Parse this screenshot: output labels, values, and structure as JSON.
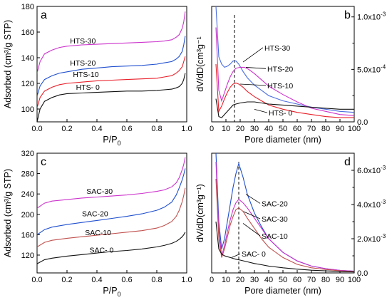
{
  "chart_data": [
    {
      "panel": "a",
      "type": "line",
      "xlabel_main": "P/P",
      "xlabel_sub": "0",
      "ylabel": "Adsorbed (cm³/g STP)",
      "xlim": [
        0,
        1.0
      ],
      "ylim": [
        90,
        180
      ],
      "xticks": [
        "0.0",
        "0.2",
        "0.4",
        "0.6",
        "0.8",
        "1.0"
      ],
      "xtick_values": [
        0,
        0.2,
        0.4,
        0.6,
        0.8,
        1.0
      ],
      "yticks": [
        "100",
        "120",
        "140",
        "160",
        "180"
      ],
      "ytick_values": [
        100,
        120,
        140,
        160,
        180
      ],
      "series": [
        {
          "name": "HTS-30",
          "color": "#cc33cc",
          "label_at": [
            0.22,
            151
          ],
          "x": [
            0.0,
            0.02,
            0.05,
            0.1,
            0.15,
            0.2,
            0.3,
            0.4,
            0.5,
            0.6,
            0.7,
            0.8,
            0.85,
            0.9,
            0.93,
            0.95,
            0.97,
            0.98,
            0.99
          ],
          "y": [
            128,
            137,
            143,
            146,
            148,
            149,
            150,
            150.5,
            151,
            151.5,
            152,
            152.5,
            153,
            154,
            156,
            158,
            163,
            168,
            176
          ]
        },
        {
          "name": "HTS-20",
          "color": "#1f4fcf",
          "label_at": [
            0.22,
            134
          ],
          "x": [
            0.0,
            0.02,
            0.05,
            0.1,
            0.15,
            0.2,
            0.3,
            0.4,
            0.5,
            0.6,
            0.7,
            0.8,
            0.85,
            0.9,
            0.93,
            0.95,
            0.97,
            0.98,
            0.99
          ],
          "y": [
            110,
            118,
            123,
            126,
            128,
            129,
            131,
            132,
            133,
            133.5,
            134,
            135,
            136,
            137,
            139,
            141,
            145,
            150,
            157
          ]
        },
        {
          "name": "HTS-10",
          "color": "#e8202a",
          "label_at": [
            0.24,
            125
          ],
          "x": [
            0.0,
            0.02,
            0.05,
            0.1,
            0.15,
            0.2,
            0.3,
            0.4,
            0.5,
            0.6,
            0.7,
            0.8,
            0.85,
            0.9,
            0.93,
            0.95,
            0.97,
            0.98,
            0.99
          ],
          "y": [
            101,
            109,
            114,
            117,
            119,
            120,
            121,
            122,
            122.5,
            123,
            123.5,
            124,
            125,
            126,
            128,
            130,
            133,
            137,
            141
          ]
        },
        {
          "name": "HTS- 0",
          "color": "#111111",
          "label_at": [
            0.26,
            115
          ],
          "x": [
            0.0,
            0.02,
            0.05,
            0.1,
            0.15,
            0.2,
            0.3,
            0.4,
            0.5,
            0.6,
            0.7,
            0.8,
            0.85,
            0.9,
            0.93,
            0.95,
            0.97,
            0.98,
            0.99
          ],
          "y": [
            90,
            100,
            106,
            109,
            111,
            112,
            112.5,
            113,
            113.5,
            114,
            114,
            114.5,
            115,
            115.5,
            116.5,
            117.5,
            120,
            123,
            128
          ]
        }
      ]
    },
    {
      "panel": "b",
      "type": "line",
      "xlabel": "Pore diameter (nm)",
      "ylabel": "dV/dD(cm³g⁻¹",
      "xlim": [
        0,
        100
      ],
      "ylim": [
        0,
        1.1
      ],
      "xticks": [
        "0",
        "10",
        "20",
        "30",
        "40",
        "50",
        "60",
        "70",
        "80",
        "90",
        "100"
      ],
      "xtick_values": [
        0,
        10,
        20,
        30,
        40,
        50,
        60,
        70,
        80,
        90,
        100
      ],
      "yticks": [
        "0.0",
        "5.0x10",
        "1.0x10"
      ],
      "ytick_exps": [
        "",
        "-4",
        "-3"
      ],
      "ytick_values": [
        0,
        0.5,
        1.0
      ],
      "ytick_minor": [
        0.25,
        0.75
      ],
      "dashed_x": 16,
      "series": [
        {
          "name": "HTS-30",
          "color": "#4a6de0",
          "label_at": [
            36,
            0.68
          ],
          "arrow_to": [
            22,
            0.57
          ],
          "x": [
            3,
            5,
            7,
            9,
            11,
            13,
            15,
            17,
            19,
            22,
            25,
            30,
            35,
            40,
            50,
            60,
            70,
            80,
            90,
            100
          ],
          "y": [
            1.1,
            0.62,
            0.55,
            0.52,
            0.53,
            0.55,
            0.58,
            0.58,
            0.55,
            0.48,
            0.42,
            0.35,
            0.3,
            0.25,
            0.2,
            0.17,
            0.14,
            0.12,
            0.1,
            0.09
          ]
        },
        {
          "name": "HTS-20",
          "color": "#cc33cc",
          "label_at": [
            38,
            0.48
          ],
          "arrow_to": [
            24,
            0.52
          ],
          "x": [
            3,
            5,
            7,
            9,
            11,
            13,
            15,
            17,
            20,
            23,
            26,
            30,
            35,
            40,
            50,
            60,
            70,
            80,
            90,
            100
          ],
          "y": [
            0.9,
            0.3,
            0.2,
            0.28,
            0.36,
            0.43,
            0.48,
            0.51,
            0.52,
            0.52,
            0.5,
            0.46,
            0.4,
            0.34,
            0.26,
            0.19,
            0.13,
            0.1,
            0.07,
            0.06
          ]
        },
        {
          "name": "HTS-10",
          "color": "#e8202a",
          "label_at": [
            38,
            0.32
          ],
          "arrow_to": [
            20,
            0.36
          ],
          "x": [
            3,
            5,
            7,
            9,
            11,
            13,
            15,
            17,
            19,
            22,
            25,
            30,
            35,
            40,
            50,
            60,
            70,
            80,
            90,
            100
          ],
          "y": [
            0.55,
            0.1,
            0.15,
            0.22,
            0.28,
            0.33,
            0.36,
            0.37,
            0.36,
            0.33,
            0.29,
            0.24,
            0.2,
            0.16,
            0.12,
            0.09,
            0.07,
            0.05,
            0.04,
            0.04
          ]
        },
        {
          "name": "HTS- 0",
          "color": "#111111",
          "label_at": [
            39,
            0.06
          ],
          "arrow_to": [
            30,
            0.12
          ],
          "x": [
            3,
            5,
            7,
            9,
            11,
            13,
            15,
            17,
            20,
            25,
            30,
            35,
            40,
            50,
            60,
            70,
            80,
            90,
            100
          ],
          "y": [
            0.22,
            0.05,
            0.04,
            0.07,
            0.1,
            0.13,
            0.16,
            0.17,
            0.18,
            0.19,
            0.19,
            0.18,
            0.17,
            0.16,
            0.15,
            0.14,
            0.13,
            0.12,
            0.12
          ]
        }
      ]
    },
    {
      "panel": "c",
      "type": "line",
      "xlabel_main": "P/P",
      "xlabel_sub": "0",
      "ylabel": "Adsorbed (cm³/g STP)",
      "xlim": [
        0,
        1.0
      ],
      "ylim": [
        85,
        320
      ],
      "xticks": [
        "0.0",
        "0.2",
        "0.4",
        "0.6",
        "0.8",
        "1.0"
      ],
      "xtick_values": [
        0,
        0.2,
        0.4,
        0.6,
        0.8,
        1.0
      ],
      "yticks": [
        "120",
        "160",
        "200",
        "240",
        "280",
        "320"
      ],
      "ytick_values": [
        120,
        160,
        200,
        240,
        280,
        320
      ],
      "series": [
        {
          "name": "SAC-30",
          "color": "#cc33cc",
          "label_at": [
            0.33,
            240
          ],
          "x": [
            0.0,
            0.05,
            0.1,
            0.2,
            0.3,
            0.4,
            0.5,
            0.6,
            0.7,
            0.8,
            0.85,
            0.9,
            0.93,
            0.95,
            0.97,
            0.98,
            0.99
          ],
          "y": [
            212,
            222,
            226,
            229,
            232,
            234,
            236,
            238,
            241,
            245,
            248,
            254,
            262,
            272,
            288,
            298,
            312
          ]
        },
        {
          "name": "SAC-20",
          "color": "#1f4fcf",
          "label_at": [
            0.3,
            196
          ],
          "x": [
            0.0,
            0.05,
            0.1,
            0.2,
            0.3,
            0.4,
            0.5,
            0.6,
            0.7,
            0.8,
            0.85,
            0.9,
            0.93,
            0.95,
            0.97,
            0.98,
            0.99
          ],
          "y": [
            160,
            170,
            175,
            180,
            184,
            188,
            192,
            196,
            201,
            208,
            214,
            224,
            238,
            252,
            268,
            278,
            290
          ]
        },
        {
          "name": "SAC-10",
          "color": "#c0504d",
          "label_at": [
            0.32,
            159
          ],
          "x": [
            0.0,
            0.05,
            0.1,
            0.2,
            0.3,
            0.4,
            0.5,
            0.6,
            0.7,
            0.8,
            0.85,
            0.9,
            0.93,
            0.95,
            0.97,
            0.98,
            0.99
          ],
          "y": [
            136,
            145,
            149,
            153,
            156,
            159,
            162,
            165,
            168,
            173,
            178,
            186,
            196,
            208,
            225,
            237,
            252
          ]
        },
        {
          "name": "SAC- 0",
          "color": "#111111",
          "label_at": [
            0.35,
            125
          ],
          "x": [
            0.0,
            0.05,
            0.1,
            0.2,
            0.3,
            0.4,
            0.5,
            0.6,
            0.7,
            0.8,
            0.85,
            0.9,
            0.93,
            0.95,
            0.97,
            0.98,
            0.99
          ],
          "y": [
            103,
            111,
            114,
            118,
            121,
            124,
            127,
            129,
            132,
            136,
            139,
            143,
            147,
            151,
            156,
            160,
            165
          ]
        }
      ]
    },
    {
      "panel": "d",
      "type": "line",
      "xlabel": "Pore diameter (nm)",
      "ylabel": "dV/dD(cm³g⁻¹)",
      "xlim": [
        0,
        100
      ],
      "ylim": [
        0,
        7.0
      ],
      "xticks": [
        "0",
        "10",
        "20",
        "30",
        "40",
        "50",
        "60",
        "70",
        "80",
        "90",
        "100"
      ],
      "xtick_values": [
        0,
        10,
        20,
        30,
        40,
        50,
        60,
        70,
        80,
        90,
        100
      ],
      "yticks": [
        "0.0",
        "2.0x10",
        "4.0x10",
        "6.0x10"
      ],
      "ytick_exps": [
        "",
        "-3",
        "-3",
        "-3"
      ],
      "ytick_values": [
        0,
        2.0,
        4.0,
        6.0
      ],
      "ytick_minor": [
        1.0,
        3.0,
        5.0
      ],
      "dashed_x": 19,
      "series": [
        {
          "name": "SAC-20",
          "color": "#1f4fcf",
          "label_at": [
            34,
            3.9
          ],
          "arrow_to": [
            24,
            4.6
          ],
          "x": [
            3,
            5,
            7,
            9,
            11,
            13,
            15,
            17,
            19,
            22,
            25,
            30,
            35,
            40,
            50,
            60,
            70,
            80,
            90,
            100
          ],
          "y": [
            7.0,
            3.0,
            1.4,
            2.0,
            3.0,
            4.0,
            5.0,
            5.8,
            6.4,
            5.6,
            4.6,
            3.5,
            2.7,
            2.0,
            1.2,
            0.7,
            0.4,
            0.25,
            0.15,
            0.1
          ]
        },
        {
          "name": "SAC-30",
          "color": "#cc33cc",
          "label_at": [
            34,
            3.0
          ],
          "arrow_to": [
            22,
            3.6
          ],
          "x": [
            3,
            5,
            7,
            9,
            11,
            13,
            15,
            17,
            19,
            22,
            25,
            30,
            35,
            40,
            50,
            60,
            70,
            80,
            90,
            100
          ],
          "y": [
            6.5,
            2.5,
            1.0,
            1.6,
            2.4,
            3.1,
            3.7,
            4.1,
            4.3,
            4.1,
            3.8,
            3.2,
            2.6,
            2.0,
            1.2,
            0.7,
            0.4,
            0.25,
            0.15,
            0.1
          ]
        },
        {
          "name": "SAC-10",
          "color": "#c0504d",
          "label_at": [
            34,
            2.0
          ],
          "arrow_to": [
            22,
            2.9
          ],
          "x": [
            3,
            5,
            7,
            9,
            11,
            13,
            15,
            17,
            19,
            22,
            25,
            30,
            35,
            40,
            50,
            60,
            70,
            80,
            90,
            100
          ],
          "y": [
            5.5,
            2.0,
            0.9,
            1.4,
            2.1,
            2.8,
            3.3,
            3.7,
            3.8,
            3.6,
            3.2,
            2.6,
            2.0,
            1.5,
            0.9,
            0.5,
            0.3,
            0.2,
            0.12,
            0.08
          ]
        },
        {
          "name": "SAC- 0",
          "color": "#111111",
          "label_at": [
            20,
            0.95
          ],
          "arrow_to": [
            14,
            0.9
          ],
          "x": [
            3,
            5,
            7,
            9,
            11,
            13,
            15,
            17,
            20,
            25,
            30,
            35,
            40,
            50,
            60,
            70,
            80,
            90,
            100
          ],
          "y": [
            3.0,
            1.4,
            1.1,
            1.0,
            0.95,
            0.9,
            0.85,
            0.8,
            0.75,
            0.65,
            0.55,
            0.48,
            0.4,
            0.3,
            0.22,
            0.16,
            0.12,
            0.08,
            0.06
          ]
        }
      ]
    }
  ]
}
